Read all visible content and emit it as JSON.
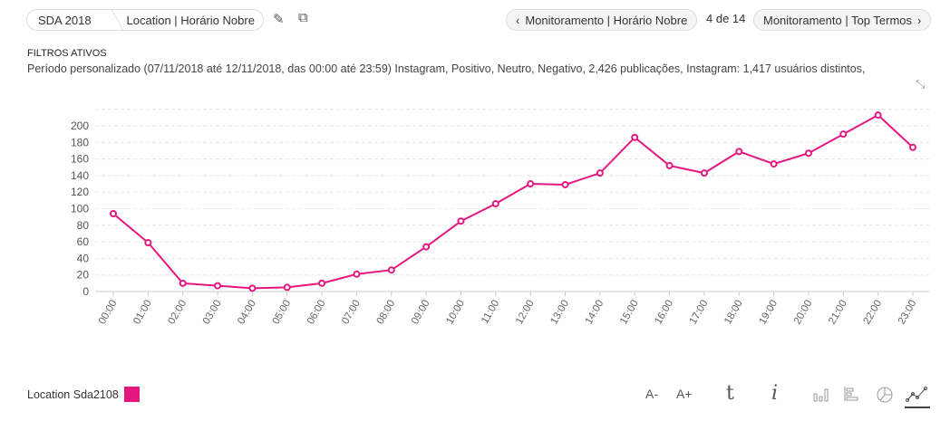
{
  "breadcrumb": {
    "root": "SDA 2018",
    "current": "Location | Horário Nobre"
  },
  "nav": {
    "prev": "Monitoramento | Horário Nobre",
    "position": "4 de 14",
    "next": "Monitoramento | Top Termos"
  },
  "filters": {
    "title": "FILTROS ATIVOS",
    "text": "Período personalizado (07/11/2018 até 12/11/2018, das 00:00 até 23:59) Instagram, Positivo, Neutro, Negativo, 2,426 publicações, Instagram: 1,417 usuários distintos,"
  },
  "toolbar": {
    "font_decrease": "A-",
    "font_increase": "A+"
  },
  "colors": {
    "series": "#e5177f"
  },
  "chart_data": {
    "type": "line",
    "x": [
      "00:00",
      "01:00",
      "02:00",
      "03:00",
      "04:00",
      "05:00",
      "06:00",
      "07:00",
      "08:00",
      "09:00",
      "10:00",
      "11:00",
      "12:00",
      "13:00",
      "14:00",
      "15:00",
      "16:00",
      "17:00",
      "18:00",
      "19:00",
      "20:00",
      "21:00",
      "22:00",
      "23:00"
    ],
    "series": [
      {
        "name": "Location Sda2108",
        "values": [
          94,
          59,
          10,
          7,
          4,
          5,
          10,
          21,
          26,
          54,
          85,
          106,
          130,
          129,
          143,
          186,
          152,
          143,
          169,
          154,
          167,
          190,
          213,
          174
        ]
      }
    ],
    "yticks": [
      0,
      20,
      40,
      60,
      80,
      100,
      120,
      140,
      160,
      180,
      200
    ],
    "ylim": [
      0,
      220
    ],
    "grid": true,
    "legend": "bottom-left"
  }
}
